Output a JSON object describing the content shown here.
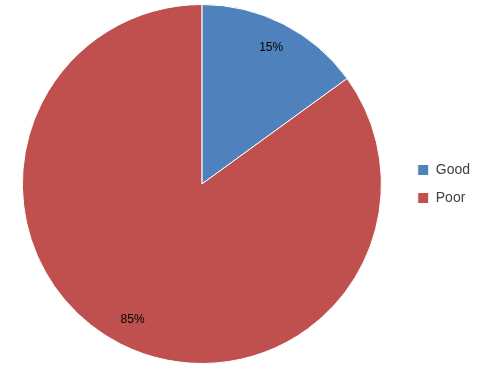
{
  "chart_data": {
    "type": "pie",
    "categories": [
      "Good",
      "Poor"
    ],
    "values": [
      15,
      85
    ],
    "value_labels": [
      "15%",
      "85%"
    ],
    "colors": [
      "#4f81bd",
      "#c0504d"
    ],
    "data_labels": true,
    "legend": "right"
  }
}
